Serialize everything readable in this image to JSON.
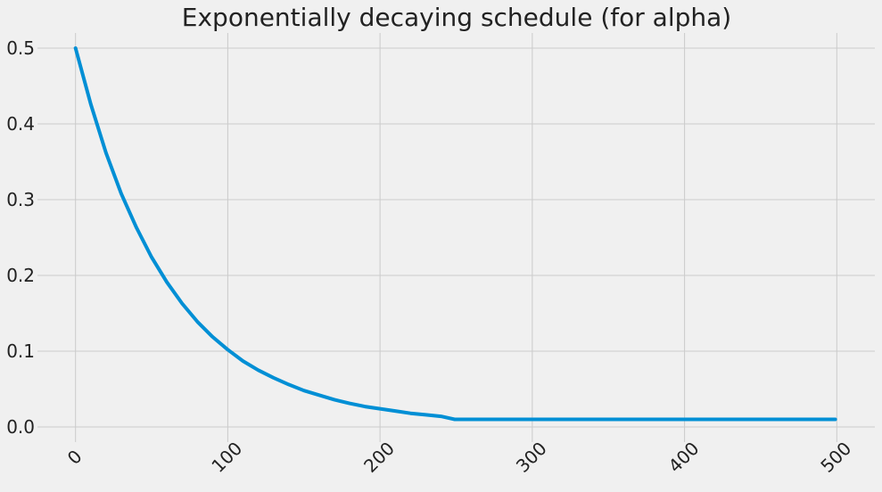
{
  "chart_data": {
    "type": "line",
    "title": "Exponentially decaying schedule (for alpha)",
    "xlabel": "",
    "ylabel": "",
    "xlim": [
      -25,
      525
    ],
    "ylim": [
      -0.02,
      0.52
    ],
    "x_ticks": [
      "0",
      "100",
      "200",
      "300",
      "400",
      "500"
    ],
    "y_ticks": [
      "0.0",
      "0.1",
      "0.2",
      "0.3",
      "0.4",
      "0.5"
    ],
    "grid": true,
    "series": [
      {
        "color": "#008fd5",
        "x": [
          0,
          10,
          20,
          30,
          40,
          50,
          60,
          70,
          80,
          90,
          100,
          110,
          120,
          130,
          140,
          150,
          160,
          170,
          180,
          190,
          200,
          210,
          220,
          230,
          240,
          249,
          260,
          300,
          350,
          400,
          450,
          499
        ],
        "y": [
          0.5,
          0.426,
          0.362,
          0.308,
          0.263,
          0.224,
          0.191,
          0.163,
          0.139,
          0.119,
          0.102,
          0.087,
          0.075,
          0.065,
          0.056,
          0.048,
          0.042,
          0.036,
          0.031,
          0.027,
          0.024,
          0.021,
          0.018,
          0.016,
          0.014,
          0.01,
          0.01,
          0.01,
          0.01,
          0.01,
          0.01,
          0.01
        ]
      }
    ]
  }
}
